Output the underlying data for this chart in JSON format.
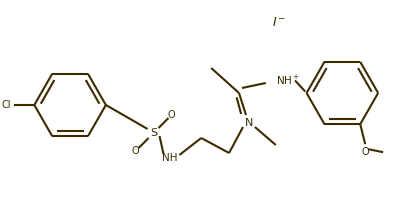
{
  "background_color": "#ffffff",
  "line_color": "#3d2b00",
  "text_color": "#3d2b00",
  "line_width": 1.5,
  "figsize": [
    3.98,
    2.13
  ],
  "dpi": 100,
  "xlim": [
    0,
    398
  ],
  "ylim": [
    0,
    213
  ]
}
